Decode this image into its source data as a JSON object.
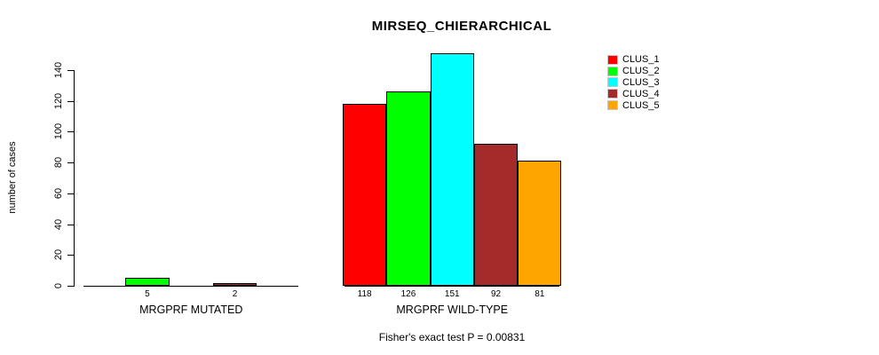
{
  "title": "MIRSEQ_CHIERARCHICAL",
  "footer": "Fisher's exact test P = 0.00831",
  "colors": {
    "CLUS_1": "#ff0000",
    "CLUS_2": "#00ff00",
    "CLUS_3": "#00ffff",
    "CLUS_4": "#a52a2a",
    "CLUS_5": "#ffa500"
  },
  "legend": {
    "items": [
      {
        "label": "CLUS_1",
        "color": "#ff0000"
      },
      {
        "label": "CLUS_2",
        "color": "#00ff00"
      },
      {
        "label": "CLUS_3",
        "color": "#00ffff"
      },
      {
        "label": "CLUS_4",
        "color": "#a52a2a"
      },
      {
        "label": "CLUS_5",
        "color": "#ffa500"
      }
    ],
    "position": "top-right"
  },
  "chart_data": {
    "type": "bar",
    "title": "MIRSEQ_CHIERARCHICAL",
    "xlabel": "",
    "ylabel": "number of cases",
    "ylim": [
      0,
      140
    ],
    "yticks": [
      0,
      20,
      40,
      60,
      80,
      100,
      120,
      140
    ],
    "grid": false,
    "legend_position": "top-right",
    "cluster_slots": [
      "CLUS_1",
      "CLUS_2",
      "CLUS_3",
      "CLUS_4",
      "CLUS_5"
    ],
    "groups": [
      {
        "label": "MRGPRF MUTATED",
        "bars": [
          {
            "cluster": "CLUS_2",
            "value": 5
          },
          {
            "cluster": "CLUS_4",
            "value": 2
          }
        ]
      },
      {
        "label": "MRGPRF WILD-TYPE",
        "bars": [
          {
            "cluster": "CLUS_1",
            "value": 118
          },
          {
            "cluster": "CLUS_2",
            "value": 126
          },
          {
            "cluster": "CLUS_3",
            "value": 151
          },
          {
            "cluster": "CLUS_4",
            "value": 92
          },
          {
            "cluster": "CLUS_5",
            "value": 81
          }
        ]
      }
    ],
    "annotation": "Fisher's exact test P = 0.00831"
  }
}
